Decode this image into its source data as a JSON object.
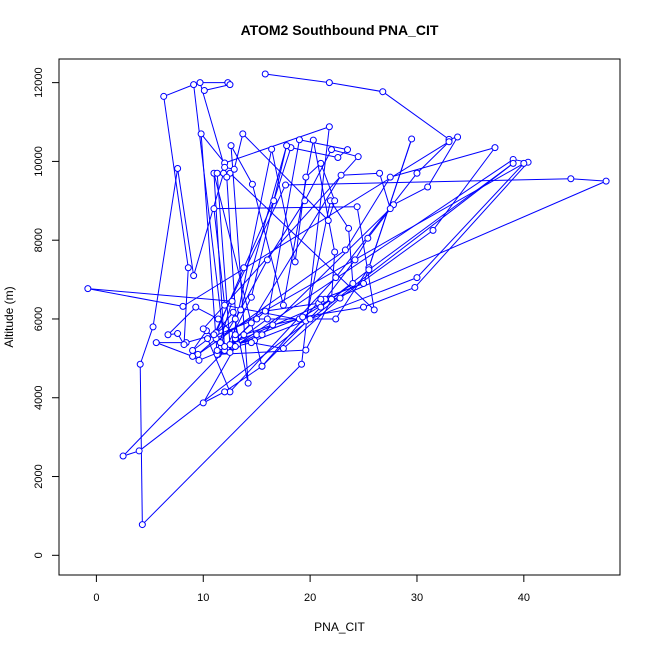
{
  "chart_data": {
    "type": "line",
    "title": "ATOM2 Southbound PNA_CIT",
    "xlabel": "PNA_CIT",
    "ylabel": "Altitude (m)",
    "xlim": [
      -3.5,
      49
    ],
    "ylim": [
      -500,
      12600
    ],
    "x_ticks": [
      0,
      10,
      20,
      30,
      40
    ],
    "x_tick_labels": [
      "0",
      "10",
      "20",
      "30",
      "40"
    ],
    "y_ticks": [
      0,
      2000,
      4000,
      6000,
      8000,
      10000,
      12000
    ],
    "y_tick_labels": [
      "0",
      "2000",
      "4000",
      "6000",
      "8000",
      "10000",
      "12000"
    ],
    "grid": false,
    "legend": "none",
    "series": [
      {
        "color": "#0000ff",
        "marker": "open-circle",
        "points": [
          [
            15.8,
            12220
          ],
          [
            21.8,
            12000
          ],
          [
            26.8,
            11770
          ],
          [
            33.0,
            10560
          ],
          [
            33.8,
            10620
          ],
          [
            31.0,
            9350
          ],
          [
            27.8,
            8900
          ],
          [
            25.4,
            8050
          ],
          [
            24.2,
            7500
          ],
          [
            21.4,
            6500
          ],
          [
            20.8,
            6400
          ],
          [
            15.8,
            6200
          ],
          [
            13.0,
            5500
          ],
          [
            12.2,
            5250
          ],
          [
            11.4,
            5100
          ],
          [
            12.3,
            5200
          ],
          [
            13.8,
            5600
          ],
          [
            16.5,
            5850
          ],
          [
            19.0,
            6000
          ],
          [
            22.0,
            6500
          ],
          [
            24.0,
            6900
          ],
          [
            23.6,
            8300
          ],
          [
            21.9,
            9000
          ],
          [
            19.6,
            5950
          ],
          [
            12.0,
            6350
          ],
          [
            11.0,
            8800
          ],
          [
            24.4,
            8850
          ],
          [
            26.0,
            6230
          ],
          [
            12.5,
            9700
          ],
          [
            11.9,
            9700
          ],
          [
            9.1,
            7100
          ],
          [
            7.6,
            9820
          ],
          [
            5.3,
            5800
          ],
          [
            4.1,
            4850
          ],
          [
            4.3,
            780
          ],
          [
            19.2,
            4850
          ],
          [
            21.8,
            10880
          ],
          [
            12.0,
            9960
          ],
          [
            9.8,
            10700
          ],
          [
            11.3,
            5100
          ],
          [
            19.6,
            5210
          ],
          [
            22.0,
            6500
          ],
          [
            22.3,
            7700
          ],
          [
            20.3,
            10540
          ],
          [
            17.5,
            6350
          ],
          [
            14.6,
            9420
          ],
          [
            12.6,
            10400
          ],
          [
            14.2,
            4370
          ],
          [
            12.8,
            6170
          ],
          [
            11.2,
            5650
          ],
          [
            13.8,
            7300
          ],
          [
            16.6,
            9000
          ],
          [
            18.2,
            10350
          ],
          [
            22.6,
            10100
          ],
          [
            23.5,
            10300
          ],
          [
            19.0,
            10550
          ],
          [
            16.0,
            6000
          ],
          [
            12.2,
            5250
          ],
          [
            10.3,
            5700
          ],
          [
            9.0,
            5200
          ],
          [
            13.0,
            6000
          ],
          [
            16.0,
            7500
          ],
          [
            19.5,
            9000
          ],
          [
            22.0,
            10300
          ],
          [
            24.5,
            10120
          ],
          [
            10.0,
            5750
          ],
          [
            11.6,
            5400
          ],
          [
            13.5,
            6230
          ],
          [
            17.8,
            10400
          ],
          [
            14.5,
            6550
          ],
          [
            12.0,
            5200
          ],
          [
            11.0,
            9700
          ],
          [
            15.5,
            4800
          ],
          [
            21.0,
            6500
          ],
          [
            25.0,
            6900
          ],
          [
            29.5,
            10570
          ],
          [
            25.5,
            7300
          ],
          [
            22.4,
            6000
          ],
          [
            15.0,
            6000
          ],
          [
            10.4,
            5500
          ],
          [
            12.5,
            4150
          ],
          [
            22.4,
            7050
          ],
          [
            30.0,
            9700
          ],
          [
            33.0,
            10500
          ],
          [
            8.1,
            6320
          ],
          [
            -0.8,
            6770
          ],
          [
            12.7,
            6450
          ],
          [
            11.3,
            5200
          ],
          [
            12.8,
            5300
          ],
          [
            15.0,
            5600
          ],
          [
            19.3,
            6050
          ],
          [
            25.0,
            6300
          ],
          [
            29.8,
            6800
          ],
          [
            40.4,
            9980
          ],
          [
            39.0,
            10050
          ],
          [
            13.2,
            5350
          ],
          [
            12.2,
            9600
          ],
          [
            11.3,
            9700
          ],
          [
            12.5,
            5350
          ],
          [
            14.8,
            5450
          ],
          [
            20.0,
            6000
          ],
          [
            30.0,
            7050
          ],
          [
            40.0,
            9950
          ],
          [
            11.2,
            5500
          ],
          [
            9.5,
            5100
          ],
          [
            23.3,
            7750
          ],
          [
            27.5,
            9600
          ],
          [
            37.3,
            10350
          ],
          [
            31.5,
            8250
          ],
          [
            22.8,
            6530
          ],
          [
            17.5,
            5250
          ],
          [
            14.5,
            5400
          ],
          [
            13.0,
            5300
          ],
          [
            10.0,
            3870
          ],
          [
            12.0,
            4150
          ],
          [
            15.5,
            4800
          ],
          [
            21.0,
            6300
          ],
          [
            25.5,
            7250
          ],
          [
            39.0,
            9950
          ],
          [
            4.0,
            2650
          ],
          [
            2.5,
            2520
          ],
          [
            14.5,
            5900
          ],
          [
            22.9,
            9650
          ],
          [
            26.5,
            9700
          ],
          [
            27.5,
            8800
          ],
          [
            15.5,
            5600
          ],
          [
            9.6,
            4950
          ],
          [
            9.0,
            5050
          ],
          [
            5.6,
            5400
          ],
          [
            8.4,
            5400
          ],
          [
            11.0,
            5600
          ],
          [
            17.7,
            9400
          ],
          [
            44.4,
            9560
          ],
          [
            47.7,
            9500
          ],
          [
            12.0,
            5300
          ],
          [
            9.1,
            11950
          ],
          [
            6.3,
            11650
          ],
          [
            8.6,
            7300
          ],
          [
            8.2,
            5350
          ],
          [
            7.6,
            5630
          ],
          [
            6.7,
            5600
          ],
          [
            9.3,
            6300
          ],
          [
            11.4,
            6000
          ],
          [
            13.0,
            5600
          ],
          [
            12.5,
            5150
          ],
          [
            16.4,
            10310
          ],
          [
            18.6,
            7450
          ],
          [
            19.6,
            9600
          ],
          [
            21.0,
            9950
          ],
          [
            22.3,
            9000
          ],
          [
            21.7,
            8500
          ],
          [
            13.7,
            10700
          ],
          [
            12.9,
            9800
          ],
          [
            12.0,
            9850
          ],
          [
            9.7,
            12000
          ],
          [
            12.3,
            12000
          ],
          [
            12.5,
            11950
          ],
          [
            10.1,
            11800
          ]
        ]
      }
    ]
  }
}
